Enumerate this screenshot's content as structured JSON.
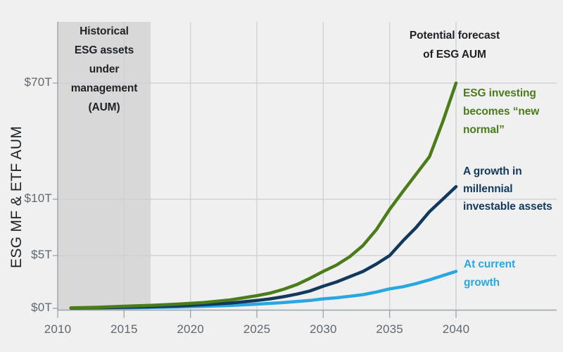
{
  "page": {
    "background": "#f0f0f1"
  },
  "chart_data": {
    "type": "line",
    "title": "",
    "xlabel": "",
    "ylabel": "ESG MF & ETF AUM",
    "x_range": [
      2010,
      2040
    ],
    "x_ticks": [
      2010,
      2015,
      2020,
      2025,
      2030,
      2035,
      2040
    ],
    "y_ticks": [
      {
        "value": 0,
        "label": "$0T"
      },
      {
        "value": 5,
        "label": "$5T"
      },
      {
        "value": 10,
        "label": "$10T"
      },
      {
        "value": 70,
        "label": "$70T"
      }
    ],
    "y_axis_note": "non-linear scale, compressed above $10T",
    "grid": true,
    "legend_position": "right-of-line-ends",
    "units": "trillions USD",
    "historical_band": {
      "from": 2010,
      "to": 2017,
      "label": "Historical\nESG assets\nunder\nmanagement\n(AUM)",
      "color": "#d8d8d8"
    },
    "forecast_label": "Potential forecast\nof ESG AUM",
    "series": [
      {
        "name": "At current growth",
        "label": "At current\ngrowth",
        "color": "#29a7e0",
        "points": [
          [
            2011,
            0.02
          ],
          [
            2013,
            0.035
          ],
          [
            2015,
            0.06
          ],
          [
            2017,
            0.09
          ],
          [
            2019,
            0.13
          ],
          [
            2021,
            0.19
          ],
          [
            2023,
            0.27
          ],
          [
            2025,
            0.4
          ],
          [
            2027,
            0.55
          ],
          [
            2029,
            0.75
          ],
          [
            2030,
            0.9
          ],
          [
            2031,
            1.0
          ],
          [
            2032,
            1.15
          ],
          [
            2033,
            1.3
          ],
          [
            2034,
            1.55
          ],
          [
            2035,
            1.85
          ],
          [
            2036,
            2.05
          ],
          [
            2037,
            2.35
          ],
          [
            2038,
            2.7
          ],
          [
            2039,
            3.1
          ],
          [
            2040,
            3.5
          ]
        ]
      },
      {
        "name": "A growth in millennial investable assets",
        "label": "A growth in\nmillennial\ninvestable assets",
        "color": "#12395d",
        "points": [
          [
            2011,
            0.03
          ],
          [
            2013,
            0.06
          ],
          [
            2015,
            0.1
          ],
          [
            2017,
            0.15
          ],
          [
            2019,
            0.23
          ],
          [
            2021,
            0.35
          ],
          [
            2023,
            0.5
          ],
          [
            2025,
            0.75
          ],
          [
            2026,
            0.9
          ],
          [
            2027,
            1.1
          ],
          [
            2028,
            1.35
          ],
          [
            2029,
            1.65
          ],
          [
            2030,
            2.1
          ],
          [
            2031,
            2.5
          ],
          [
            2032,
            3.0
          ],
          [
            2033,
            3.5
          ],
          [
            2034,
            4.2
          ],
          [
            2035,
            5.0
          ],
          [
            2036,
            6.3
          ],
          [
            2037,
            7.5
          ],
          [
            2038,
            8.9
          ],
          [
            2039,
            10.0
          ],
          [
            2040,
            16.5
          ]
        ]
      },
      {
        "name": "ESG investing becomes “new normal”",
        "label": "ESG investing\nbecomes “new\nnormal”",
        "color": "#4b7c1a",
        "points": [
          [
            2011,
            0.05
          ],
          [
            2013,
            0.1
          ],
          [
            2015,
            0.2
          ],
          [
            2017,
            0.28
          ],
          [
            2019,
            0.4
          ],
          [
            2021,
            0.55
          ],
          [
            2023,
            0.8
          ],
          [
            2025,
            1.2
          ],
          [
            2026,
            1.45
          ],
          [
            2027,
            1.8
          ],
          [
            2028,
            2.25
          ],
          [
            2029,
            2.85
          ],
          [
            2030,
            3.5
          ],
          [
            2031,
            4.1
          ],
          [
            2032,
            4.9
          ],
          [
            2033,
            5.9
          ],
          [
            2034,
            7.3
          ],
          [
            2035,
            9.1
          ],
          [
            2036,
            14
          ],
          [
            2037,
            23
          ],
          [
            2038,
            32
          ],
          [
            2039,
            50
          ],
          [
            2040,
            70
          ]
        ]
      }
    ]
  },
  "colors": {
    "background": "#f0f0f1",
    "band": "#d8d8d8",
    "gridline": "#c9cfd6",
    "axis": "#9aa2aa",
    "tick_text": "#5f686e",
    "annotation_text": "#1e2226"
  }
}
